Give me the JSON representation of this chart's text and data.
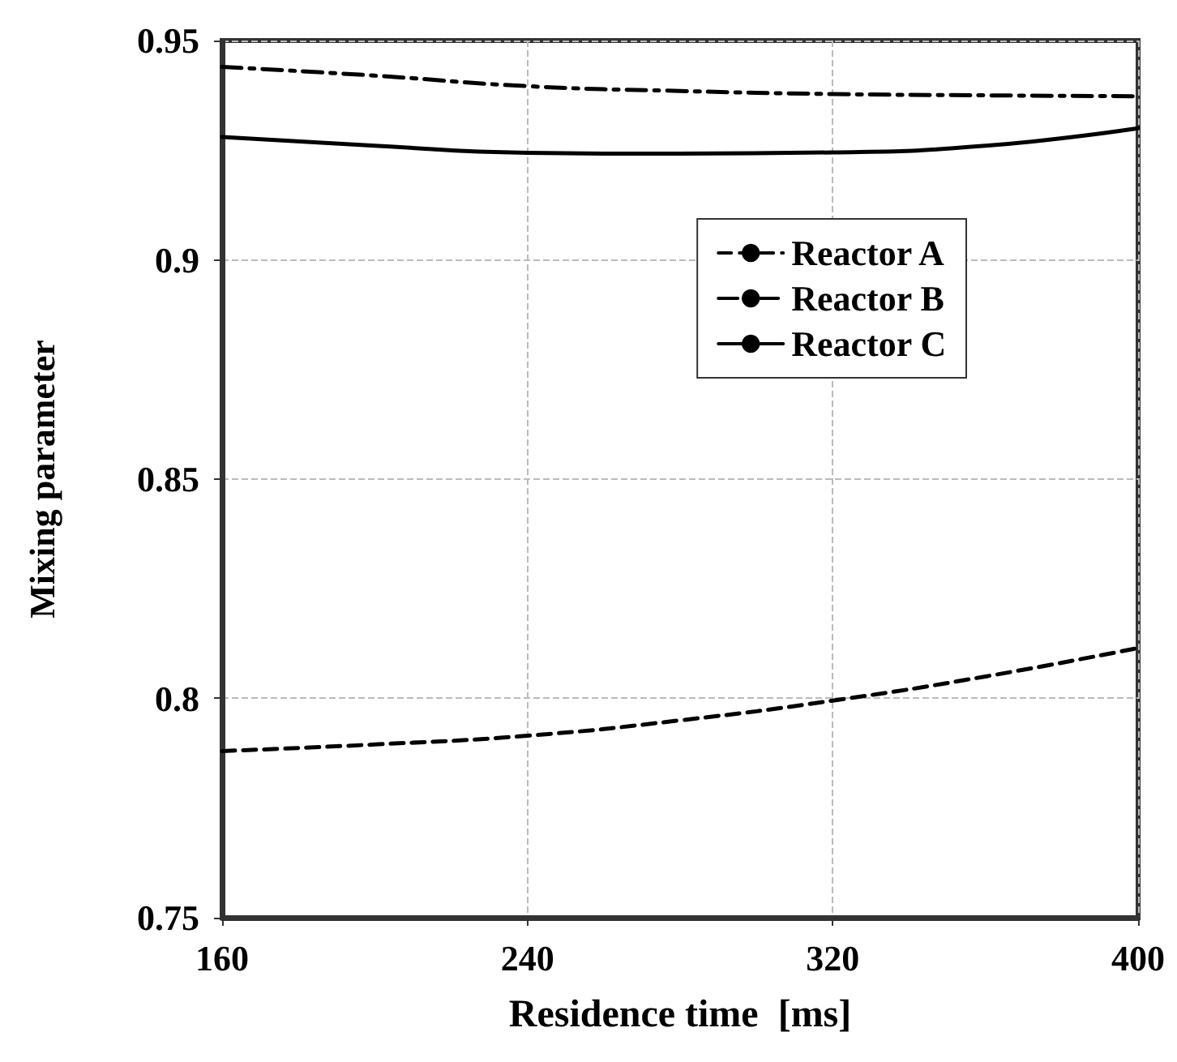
{
  "chart_data": {
    "type": "line",
    "xlabel": "Residence time  [ms]",
    "ylabel": "Mixing parameter",
    "x": [
      160,
      200,
      240,
      280,
      320,
      360,
      400
    ],
    "series": [
      {
        "name": "Reactor A",
        "color": "#000000",
        "line_style": "dashed",
        "values": [
          0.788,
          0.7895,
          0.7915,
          0.795,
          0.7995,
          0.805,
          0.8115
        ]
      },
      {
        "name": "Reactor B",
        "color": "#000000",
        "line_style": "dashdot",
        "values": [
          0.944,
          0.942,
          0.9396,
          0.9385,
          0.9378,
          0.9375,
          0.9373
        ]
      },
      {
        "name": "Reactor C",
        "color": "#000000",
        "line_style": "solid",
        "values": [
          0.928,
          0.926,
          0.9244,
          0.9242,
          0.9245,
          0.926,
          0.93
        ]
      }
    ],
    "xlim": [
      160,
      400
    ],
    "xticks": [
      160,
      240,
      320,
      400
    ],
    "ylim": [
      0.75,
      0.95
    ],
    "yticks": [
      0.75,
      0.8,
      0.85,
      0.9,
      0.95
    ],
    "grid": true,
    "legend": "right",
    "marker": "none"
  }
}
